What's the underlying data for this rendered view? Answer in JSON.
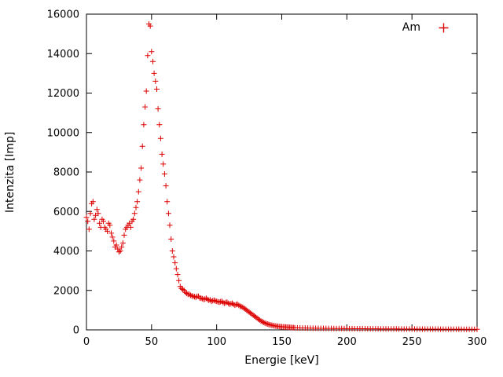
{
  "colors": {
    "background": "#ffffff",
    "border": "#000000",
    "text": "#000000",
    "series_red": "#dd0000"
  },
  "chart_data": {
    "type": "scatter",
    "title": "",
    "xlabel": "Energie [keV]",
    "ylabel": "Intenzita [Imp]",
    "xlim": [
      0,
      300
    ],
    "ylim": [
      0,
      16000
    ],
    "xticks": [
      0,
      50,
      100,
      150,
      200,
      250,
      300
    ],
    "yticks": [
      0,
      2000,
      4000,
      6000,
      8000,
      10000,
      12000,
      14000,
      16000
    ],
    "grid": false,
    "legend": {
      "position": "top-right-inside",
      "entries": [
        {
          "label": "Am",
          "marker": "plus",
          "color": "#dd0000"
        }
      ]
    },
    "series": [
      {
        "name": "Am",
        "marker": "plus",
        "color": "#dd0000",
        "points": [
          [
            0,
            5700
          ],
          [
            1,
            5500
          ],
          [
            2,
            5100
          ],
          [
            3,
            5900
          ],
          [
            4,
            6400
          ],
          [
            5,
            6500
          ],
          [
            6,
            5600
          ],
          [
            7,
            5800
          ],
          [
            8,
            6100
          ],
          [
            9,
            5900
          ],
          [
            10,
            5400
          ],
          [
            11,
            5200
          ],
          [
            12,
            5600
          ],
          [
            13,
            5500
          ],
          [
            14,
            5200
          ],
          [
            15,
            5100
          ],
          [
            16,
            5000
          ],
          [
            17,
            5400
          ],
          [
            18,
            5300
          ],
          [
            19,
            4900
          ],
          [
            20,
            4700
          ],
          [
            21,
            4500
          ],
          [
            22,
            4200
          ],
          [
            23,
            4300
          ],
          [
            24,
            4100
          ],
          [
            25,
            3950
          ],
          [
            26,
            4000
          ],
          [
            27,
            4200
          ],
          [
            28,
            4400
          ],
          [
            29,
            4800
          ],
          [
            30,
            5100
          ],
          [
            31,
            5200
          ],
          [
            32,
            5300
          ],
          [
            33,
            5400
          ],
          [
            34,
            5200
          ],
          [
            35,
            5500
          ],
          [
            36,
            5600
          ],
          [
            37,
            5900
          ],
          [
            38,
            6200
          ],
          [
            39,
            6500
          ],
          [
            40,
            7000
          ],
          [
            41,
            7600
          ],
          [
            42,
            8200
          ],
          [
            43,
            9300
          ],
          [
            44,
            10400
          ],
          [
            45,
            11300
          ],
          [
            46,
            12100
          ],
          [
            47,
            13900
          ],
          [
            48,
            15500
          ],
          [
            49,
            15400
          ],
          [
            50,
            14100
          ],
          [
            51,
            13600
          ],
          [
            52,
            13000
          ],
          [
            53,
            12600
          ],
          [
            54,
            12200
          ],
          [
            55,
            11200
          ],
          [
            56,
            10400
          ],
          [
            57,
            9700
          ],
          [
            58,
            8900
          ],
          [
            59,
            8400
          ],
          [
            60,
            7900
          ],
          [
            61,
            7300
          ],
          [
            62,
            6500
          ],
          [
            63,
            5900
          ],
          [
            64,
            5300
          ],
          [
            65,
            4600
          ],
          [
            66,
            4000
          ],
          [
            67,
            3700
          ],
          [
            68,
            3400
          ],
          [
            69,
            3100
          ],
          [
            70,
            2800
          ],
          [
            71,
            2500
          ],
          [
            72,
            2200
          ],
          [
            73,
            2100
          ],
          [
            74,
            2050
          ],
          [
            75,
            2000
          ],
          [
            76,
            1900
          ],
          [
            77,
            1850
          ],
          [
            78,
            1800
          ],
          [
            79,
            1800
          ],
          [
            80,
            1750
          ],
          [
            81,
            1720
          ],
          [
            82,
            1700
          ],
          [
            83,
            1680
          ],
          [
            84,
            1650
          ],
          [
            85,
            1700
          ],
          [
            86,
            1700
          ],
          [
            87,
            1620
          ],
          [
            88,
            1600
          ],
          [
            89,
            1580
          ],
          [
            90,
            1550
          ],
          [
            91,
            1560
          ],
          [
            92,
            1600
          ],
          [
            93,
            1540
          ],
          [
            94,
            1500
          ],
          [
            95,
            1520
          ],
          [
            96,
            1450
          ],
          [
            97,
            1480
          ],
          [
            98,
            1500
          ],
          [
            99,
            1460
          ],
          [
            100,
            1450
          ],
          [
            101,
            1420
          ],
          [
            102,
            1400
          ],
          [
            103,
            1430
          ],
          [
            104,
            1450
          ],
          [
            105,
            1380
          ],
          [
            106,
            1350
          ],
          [
            107,
            1390
          ],
          [
            108,
            1400
          ],
          [
            109,
            1340
          ],
          [
            110,
            1300
          ],
          [
            111,
            1330
          ],
          [
            112,
            1350
          ],
          [
            113,
            1290
          ],
          [
            114,
            1250
          ],
          [
            115,
            1280
          ],
          [
            116,
            1300
          ],
          [
            117,
            1240
          ],
          [
            118,
            1200
          ],
          [
            119,
            1180
          ],
          [
            120,
            1150
          ],
          [
            121,
            1100
          ],
          [
            122,
            1050
          ],
          [
            123,
            1000
          ],
          [
            124,
            950
          ],
          [
            125,
            900
          ],
          [
            126,
            850
          ],
          [
            127,
            800
          ],
          [
            128,
            750
          ],
          [
            129,
            700
          ],
          [
            130,
            650
          ],
          [
            131,
            600
          ],
          [
            132,
            550
          ],
          [
            133,
            500
          ],
          [
            134,
            450
          ],
          [
            135,
            420
          ],
          [
            136,
            380
          ],
          [
            137,
            350
          ],
          [
            138,
            320
          ],
          [
            139,
            300
          ],
          [
            140,
            280
          ],
          [
            141,
            260
          ],
          [
            142,
            240
          ],
          [
            143,
            225
          ],
          [
            144,
            210
          ],
          [
            145,
            200
          ],
          [
            146,
            190
          ],
          [
            147,
            180
          ],
          [
            148,
            170
          ],
          [
            149,
            165
          ],
          [
            150,
            160
          ],
          [
            151,
            155
          ],
          [
            152,
            150
          ],
          [
            153,
            145
          ],
          [
            154,
            140
          ],
          [
            155,
            135
          ],
          [
            156,
            130
          ],
          [
            157,
            125
          ],
          [
            158,
            120
          ],
          [
            159,
            115
          ],
          [
            160,
            110
          ],
          [
            162,
            105
          ],
          [
            164,
            100
          ],
          [
            166,
            95
          ],
          [
            168,
            95
          ],
          [
            170,
            90
          ],
          [
            172,
            90
          ],
          [
            174,
            85
          ],
          [
            176,
            85
          ],
          [
            178,
            80
          ],
          [
            180,
            80
          ],
          [
            182,
            80
          ],
          [
            184,
            75
          ],
          [
            186,
            75
          ],
          [
            188,
            75
          ],
          [
            190,
            70
          ],
          [
            192,
            70
          ],
          [
            194,
            70
          ],
          [
            196,
            70
          ],
          [
            198,
            65
          ],
          [
            200,
            65
          ],
          [
            202,
            65
          ],
          [
            204,
            65
          ],
          [
            206,
            60
          ],
          [
            208,
            60
          ],
          [
            210,
            60
          ],
          [
            212,
            60
          ],
          [
            214,
            60
          ],
          [
            216,
            55
          ],
          [
            218,
            55
          ],
          [
            220,
            55
          ],
          [
            222,
            55
          ],
          [
            224,
            55
          ],
          [
            226,
            50
          ],
          [
            228,
            50
          ],
          [
            230,
            50
          ],
          [
            232,
            50
          ],
          [
            234,
            50
          ],
          [
            236,
            50
          ],
          [
            238,
            50
          ],
          [
            240,
            45
          ],
          [
            242,
            45
          ],
          [
            244,
            45
          ],
          [
            246,
            45
          ],
          [
            248,
            45
          ],
          [
            250,
            45
          ],
          [
            252,
            45
          ],
          [
            254,
            40
          ],
          [
            256,
            40
          ],
          [
            258,
            40
          ],
          [
            260,
            40
          ],
          [
            262,
            40
          ],
          [
            264,
            40
          ],
          [
            266,
            40
          ],
          [
            268,
            40
          ],
          [
            270,
            40
          ],
          [
            272,
            35
          ],
          [
            274,
            35
          ],
          [
            276,
            35
          ],
          [
            278,
            35
          ],
          [
            280,
            35
          ],
          [
            282,
            35
          ],
          [
            284,
            35
          ],
          [
            286,
            35
          ],
          [
            288,
            35
          ],
          [
            290,
            30
          ],
          [
            292,
            30
          ],
          [
            294,
            30
          ],
          [
            296,
            30
          ],
          [
            298,
            30
          ],
          [
            300,
            30
          ]
        ]
      }
    ]
  }
}
